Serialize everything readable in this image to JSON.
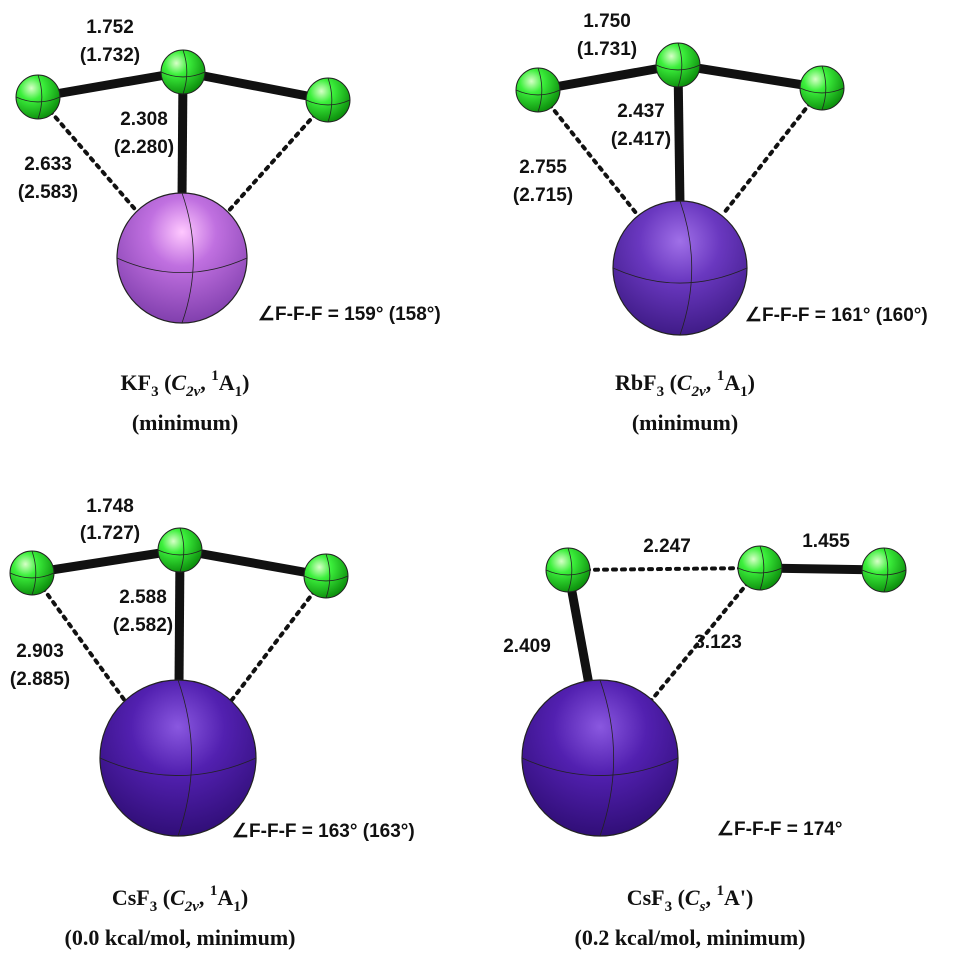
{
  "panels": [
    {
      "distances": [
        "1.752",
        "(1.732)",
        "2.308",
        "(2.280)",
        "2.633",
        "(2.583)"
      ],
      "angle": "∠F-F-F = 159° (158°)",
      "caption": [
        [
          "KF",
          "3",
          " (",
          "C",
          "2v",
          ", ",
          "1",
          "A",
          "1",
          ")"
        ],
        [
          "(minimum)"
        ]
      ]
    },
    {
      "distances": [
        "1.750",
        "(1.731)",
        "2.437",
        "(2.417)",
        "2.755",
        "(2.715)"
      ],
      "angle": "∠F-F-F = 161° (160°)",
      "caption": [
        [
          "RbF",
          "3",
          " (",
          "C",
          "2v",
          ", ",
          "1",
          "A",
          "1",
          ")"
        ],
        [
          "(minimum)"
        ]
      ]
    },
    {
      "distances": [
        "1.748",
        "(1.727)",
        "2.588",
        "(2.582)",
        "2.903",
        "(2.885)"
      ],
      "angle": "∠F-F-F = 163° (163°)",
      "caption": [
        [
          "CsF",
          "3",
          " (",
          "C",
          "2v",
          ", ",
          "1",
          "A",
          "1",
          ")"
        ],
        [
          "(0.0 kcal/mol, minimum)"
        ]
      ]
    },
    {
      "distances": [
        "2.247",
        "1.455",
        "2.409",
        "3.123"
      ],
      "angle": "∠F-F-F = 174°",
      "caption": [
        [
          "CsF",
          "3",
          " (",
          "C",
          "s",
          ", ",
          "1",
          "A'",
          ")"
        ],
        [
          "(0.2 kcal/mol, minimum)"
        ]
      ]
    }
  ]
}
